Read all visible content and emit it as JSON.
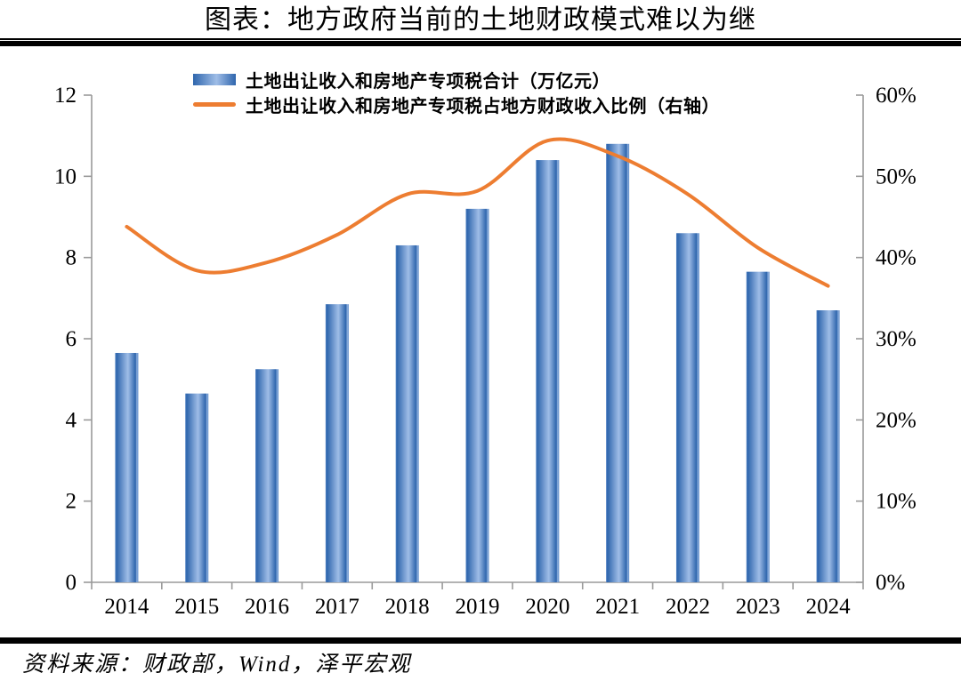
{
  "title": "图表：地方政府当前的土地财政模式难以为继",
  "source_note": "资料来源：财政部，Wind，泽平宏观",
  "chart_data": {
    "type": "bar+line",
    "title": "图表：地方政府当前的土地财政模式难以为继",
    "categories": [
      "2014",
      "2015",
      "2016",
      "2017",
      "2018",
      "2019",
      "2020",
      "2021",
      "2022",
      "2023",
      "2024"
    ],
    "series": [
      {
        "name": "土地出让收入和房地产专项税合计（万亿元）",
        "type": "bar",
        "axis": "left",
        "unit": "万亿元",
        "values": [
          5.65,
          4.65,
          5.25,
          6.85,
          8.3,
          9.2,
          10.4,
          10.8,
          8.6,
          7.65,
          6.7
        ]
      },
      {
        "name": "土地出让收入和房地产专项税占地方财政收入比例（右轴）",
        "type": "line",
        "axis": "right",
        "unit": "%",
        "values": [
          43.8,
          38.4,
          39.4,
          42.8,
          47.8,
          48.2,
          54.4,
          52.5,
          47.8,
          41.2,
          36.5
        ]
      }
    ],
    "left_axis": {
      "min": 0,
      "max": 12,
      "step": 2,
      "tick_labels": [
        "0",
        "2",
        "4",
        "6",
        "8",
        "10",
        "12"
      ]
    },
    "right_axis": {
      "min": 0,
      "max": 60,
      "step": 10,
      "tick_labels": [
        "0%",
        "10%",
        "20%",
        "30%",
        "40%",
        "50%",
        "60%"
      ]
    },
    "legend_position": "top-inside",
    "grid": false,
    "colors": {
      "bar_dark": "#2f66ad",
      "bar_light": "#9fbde7",
      "bar_mid": "#5585c6",
      "bar_edge_light": "#8fb0dd",
      "line": "#ED7D31",
      "axis": "#9a9a9a",
      "text": "#000000",
      "rule": "#000000"
    }
  }
}
